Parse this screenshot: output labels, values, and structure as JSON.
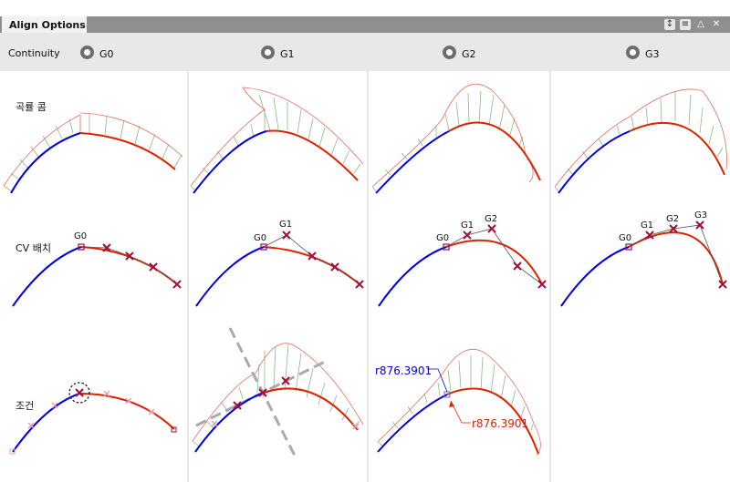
{
  "panel": {
    "title": "Align Options"
  },
  "titlebar_buttons": [
    "pin-icon",
    "menu-icon",
    "collapse-icon",
    "close-icon"
  ],
  "continuity": {
    "label": "Continuity",
    "options": [
      "G0",
      "G1",
      "G2",
      "G3"
    ]
  },
  "rows": {
    "curvature_comb": "곡률 콤",
    "cv_placement": "CV 배치",
    "condition": "조건"
  },
  "cv_labels": {
    "g0": "G0",
    "g1": "G1",
    "g2": "G2",
    "g3": "G3"
  },
  "radius_labels": {
    "blue": "r876.3901",
    "red": "r876.3901"
  },
  "colors": {
    "blue_curve": "#0000e0",
    "red_curve": "#dd2200",
    "comb": "#8ab88a",
    "comb_outline": "#e07060",
    "cv_marker": "#a0103a"
  }
}
